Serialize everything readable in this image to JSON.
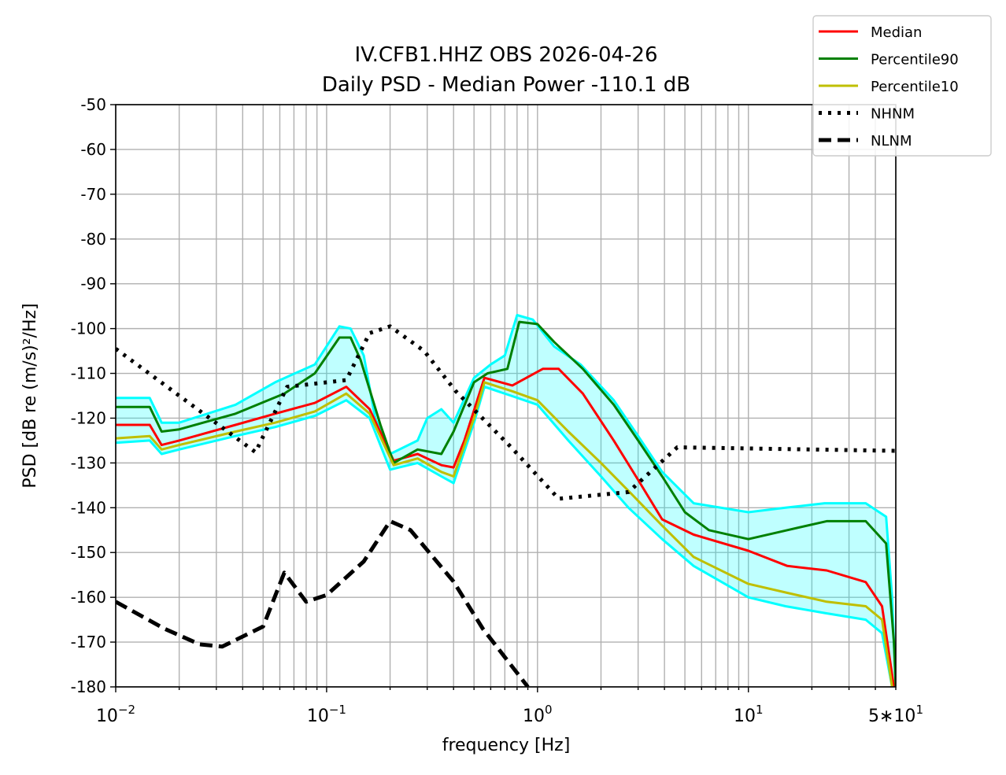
{
  "chart_data": {
    "type": "line",
    "title": "IV.CFB1.HHZ OBS 2026-04-26",
    "subtitle": "Daily PSD - Median Power -110.1 dB",
    "xlabel": "frequency [Hz]",
    "ylabel": "PSD [dB re (m/s)²/Hz]",
    "xscale": "log",
    "xlim": [
      0.01,
      50
    ],
    "ylim": [
      -180,
      -50
    ],
    "grid": true,
    "legend_placement": "top-right outside",
    "yticks": [
      -50,
      -60,
      -70,
      -80,
      -90,
      -100,
      -110,
      -120,
      -130,
      -140,
      -150,
      -160,
      -170,
      -180
    ],
    "xticks": [
      {
        "value": 0.01,
        "base": "10",
        "exp": "−2"
      },
      {
        "value": 0.1,
        "base": "10",
        "exp": "−1"
      },
      {
        "value": 1,
        "base": "10",
        "exp": "0"
      },
      {
        "value": 10,
        "base": "10",
        "exp": "1"
      },
      {
        "value": 50,
        "base": "5∗10",
        "exp": "1"
      }
    ],
    "series": [
      {
        "name": "hourly-upper",
        "legend": false,
        "color": "#00ffff",
        "style": "solid",
        "points": [
          [
            0.01,
            -115.5
          ],
          [
            0.0145,
            -115.5
          ],
          [
            0.0165,
            -121
          ],
          [
            0.02,
            -121
          ],
          [
            0.037,
            -117
          ],
          [
            0.057,
            -112
          ],
          [
            0.088,
            -108
          ],
          [
            0.115,
            -99.5
          ],
          [
            0.13,
            -100
          ],
          [
            0.15,
            -106
          ],
          [
            0.17,
            -120
          ],
          [
            0.2,
            -128
          ],
          [
            0.27,
            -125
          ],
          [
            0.3,
            -120
          ],
          [
            0.35,
            -118
          ],
          [
            0.4,
            -121
          ],
          [
            0.5,
            -111
          ],
          [
            0.6,
            -108
          ],
          [
            0.7,
            -106
          ],
          [
            0.8,
            -97
          ],
          [
            0.95,
            -98
          ],
          [
            1.2,
            -104
          ],
          [
            1.6,
            -108
          ],
          [
            2.3,
            -116
          ],
          [
            3.0,
            -124
          ],
          [
            3.9,
            -132
          ],
          [
            5.5,
            -139
          ],
          [
            10,
            -141
          ],
          [
            15,
            -140
          ],
          [
            23,
            -139
          ],
          [
            36,
            -139
          ],
          [
            45,
            -142
          ],
          [
            48,
            -160
          ],
          [
            50,
            -180
          ]
        ]
      },
      {
        "name": "hourly-lower",
        "legend": false,
        "color": "#00ffff",
        "style": "solid",
        "points": [
          [
            0.01,
            -125.5
          ],
          [
            0.0145,
            -125
          ],
          [
            0.0165,
            -128
          ],
          [
            0.02,
            -127
          ],
          [
            0.037,
            -124
          ],
          [
            0.057,
            -122
          ],
          [
            0.088,
            -119.5
          ],
          [
            0.124,
            -116
          ],
          [
            0.16,
            -120
          ],
          [
            0.2,
            -131.5
          ],
          [
            0.27,
            -130
          ],
          [
            0.35,
            -133
          ],
          [
            0.4,
            -134.5
          ],
          [
            0.5,
            -121
          ],
          [
            0.56,
            -113
          ],
          [
            0.75,
            -115
          ],
          [
            1.0,
            -117
          ],
          [
            1.4,
            -125
          ],
          [
            2.0,
            -133
          ],
          [
            2.7,
            -140
          ],
          [
            3.9,
            -147
          ],
          [
            5.5,
            -153
          ],
          [
            10,
            -160
          ],
          [
            15,
            -162
          ],
          [
            23,
            -163.5
          ],
          [
            36,
            -165
          ],
          [
            43,
            -168
          ],
          [
            48,
            -180
          ]
        ]
      },
      {
        "name": "Median",
        "legend": true,
        "color": "#ff0000",
        "style": "solid",
        "points": [
          [
            0.01,
            -121.5
          ],
          [
            0.0145,
            -121.5
          ],
          [
            0.0165,
            -126
          ],
          [
            0.02,
            -125
          ],
          [
            0.037,
            -121.5
          ],
          [
            0.057,
            -119
          ],
          [
            0.088,
            -116.6
          ],
          [
            0.124,
            -113
          ],
          [
            0.16,
            -118
          ],
          [
            0.208,
            -129.5
          ],
          [
            0.27,
            -128
          ],
          [
            0.35,
            -130.5
          ],
          [
            0.4,
            -131
          ],
          [
            0.45,
            -125
          ],
          [
            0.56,
            -111
          ],
          [
            0.76,
            -112.7
          ],
          [
            1.06,
            -109
          ],
          [
            1.26,
            -109
          ],
          [
            1.64,
            -114.5
          ],
          [
            2.3,
            -125
          ],
          [
            3.0,
            -133.8
          ],
          [
            3.9,
            -142.6
          ],
          [
            5.5,
            -146
          ],
          [
            10,
            -149.6
          ],
          [
            15.3,
            -153
          ],
          [
            23.5,
            -154
          ],
          [
            36,
            -156.6
          ],
          [
            43,
            -162
          ],
          [
            49,
            -180
          ]
        ]
      },
      {
        "name": "Percentile90",
        "legend": true,
        "color": "#008000",
        "style": "solid",
        "points": [
          [
            0.01,
            -117.5
          ],
          [
            0.0145,
            -117.5
          ],
          [
            0.0165,
            -123
          ],
          [
            0.02,
            -122.5
          ],
          [
            0.037,
            -119
          ],
          [
            0.063,
            -114.5
          ],
          [
            0.088,
            -110
          ],
          [
            0.115,
            -102
          ],
          [
            0.13,
            -102
          ],
          [
            0.145,
            -107
          ],
          [
            0.18,
            -121.5
          ],
          [
            0.208,
            -130
          ],
          [
            0.27,
            -127
          ],
          [
            0.35,
            -128
          ],
          [
            0.4,
            -123
          ],
          [
            0.5,
            -112
          ],
          [
            0.58,
            -110
          ],
          [
            0.72,
            -109
          ],
          [
            0.82,
            -98.5
          ],
          [
            1.0,
            -99
          ],
          [
            1.2,
            -103
          ],
          [
            1.64,
            -109
          ],
          [
            2.3,
            -117
          ],
          [
            3.0,
            -125
          ],
          [
            3.9,
            -133
          ],
          [
            5.0,
            -141
          ],
          [
            6.5,
            -145
          ],
          [
            10,
            -147
          ],
          [
            15.3,
            -145
          ],
          [
            23.5,
            -143
          ],
          [
            36,
            -143
          ],
          [
            45,
            -148
          ],
          [
            49,
            -170
          ],
          [
            50,
            -180
          ]
        ]
      },
      {
        "name": "Percentile10",
        "legend": true,
        "color": "#bfbf00",
        "style": "solid",
        "points": [
          [
            0.01,
            -124.5
          ],
          [
            0.0145,
            -124
          ],
          [
            0.0165,
            -127
          ],
          [
            0.02,
            -126
          ],
          [
            0.037,
            -123
          ],
          [
            0.057,
            -121
          ],
          [
            0.088,
            -118.5
          ],
          [
            0.124,
            -114.5
          ],
          [
            0.16,
            -119
          ],
          [
            0.208,
            -130.5
          ],
          [
            0.27,
            -129
          ],
          [
            0.35,
            -132
          ],
          [
            0.4,
            -133
          ],
          [
            0.5,
            -120
          ],
          [
            0.56,
            -112
          ],
          [
            0.76,
            -114
          ],
          [
            1.0,
            -116
          ],
          [
            1.4,
            -123
          ],
          [
            2.0,
            -130
          ],
          [
            2.8,
            -137
          ],
          [
            3.9,
            -144
          ],
          [
            5.5,
            -151
          ],
          [
            10,
            -157
          ],
          [
            15.3,
            -159
          ],
          [
            23.5,
            -161
          ],
          [
            36,
            -162
          ],
          [
            43,
            -165
          ],
          [
            48,
            -180
          ]
        ]
      },
      {
        "name": "NHNM",
        "legend": true,
        "color": "#000000",
        "style": "dotted",
        "points": [
          [
            0.01,
            -104.5
          ],
          [
            0.046,
            -127.6
          ],
          [
            0.065,
            -113
          ],
          [
            0.124,
            -111.5
          ],
          [
            0.16,
            -101
          ],
          [
            0.2,
            -99.5
          ],
          [
            0.29,
            -105
          ],
          [
            0.41,
            -114
          ],
          [
            0.75,
            -126.5
          ],
          [
            1.26,
            -138
          ],
          [
            2.7,
            -136.5
          ],
          [
            4.6,
            -126.5
          ],
          [
            50,
            -127.3
          ]
        ]
      },
      {
        "name": "NLNM",
        "legend": true,
        "color": "#000000",
        "style": "dashed",
        "points": [
          [
            0.01,
            -161
          ],
          [
            0.017,
            -167
          ],
          [
            0.025,
            -170.5
          ],
          [
            0.032,
            -171
          ],
          [
            0.05,
            -166.5
          ],
          [
            0.063,
            -154.5
          ],
          [
            0.08,
            -161
          ],
          [
            0.1,
            -159.5
          ],
          [
            0.15,
            -152
          ],
          [
            0.2,
            -143
          ],
          [
            0.25,
            -145
          ],
          [
            0.4,
            -156.5
          ],
          [
            0.55,
            -167
          ],
          [
            0.9,
            -180
          ]
        ]
      }
    ]
  }
}
